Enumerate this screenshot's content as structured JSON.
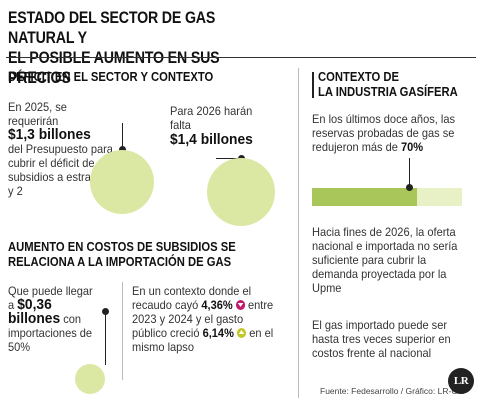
{
  "title": {
    "line1": "ESTADO DEL SECTOR DE GAS NATURAL Y",
    "line2": "EL POSIBLE AUMENTO EN SUS PRECIOS"
  },
  "deficit": {
    "heading": "DÉFICIT EN EL SECTOR Y CONTEXTO",
    "c2025": {
      "pre": "En 2025, se requerirán",
      "value": "$1,3 billones",
      "post": "del Presupuesto para cubrir el déficit de subsidios a estratos 1 y 2"
    },
    "c2026": {
      "pre": "Para 2026 harán falta",
      "value": "$1,4 billones"
    }
  },
  "aumento": {
    "heading1": "AUMENTO EN COSTOS DE SUBSIDIOS SE",
    "heading2": "RELACIONA A LA IMPORTACIÓN DE GAS",
    "left": {
      "pre": "Que puede llegar a",
      "value": "$0,36 billones",
      "post": "con importaciones de 50%"
    },
    "right": {
      "t1": "En un contexto donde el recaudo cayó",
      "v1": "4,36%",
      "t2": "entre 2023 y 2024 y el gasto público creció",
      "v2": "6,14%",
      "t3": "en el mismo lapso"
    }
  },
  "contexto": {
    "heading1": "CONTEXTO DE",
    "heading2": "LA INDUSTRIA GASÍFERA",
    "p1_pre": "En los últimos doce años, las reservas probadas de gas se redujeron más de",
    "p1_value": "70%",
    "bar_fraction": 0.7,
    "p2": "Hacia fines de 2026, la oferta nacional e importada no sería suficiente para cubrir la demanda proyectada por la Upme",
    "p3": "El gas importado puede ser hasta tres veces superior en costos frente al nacional"
  },
  "footer": {
    "source": "Fuente: Fedesarrollo / Gráfico: LR-GR",
    "logo": "LR"
  },
  "colors": {
    "circle": "#dbe8a4",
    "bar_fill": "#a8c65a",
    "bar_bg": "#e8f0c6",
    "down_badge": "#c21b6b",
    "up_badge": "#c2c72a"
  }
}
